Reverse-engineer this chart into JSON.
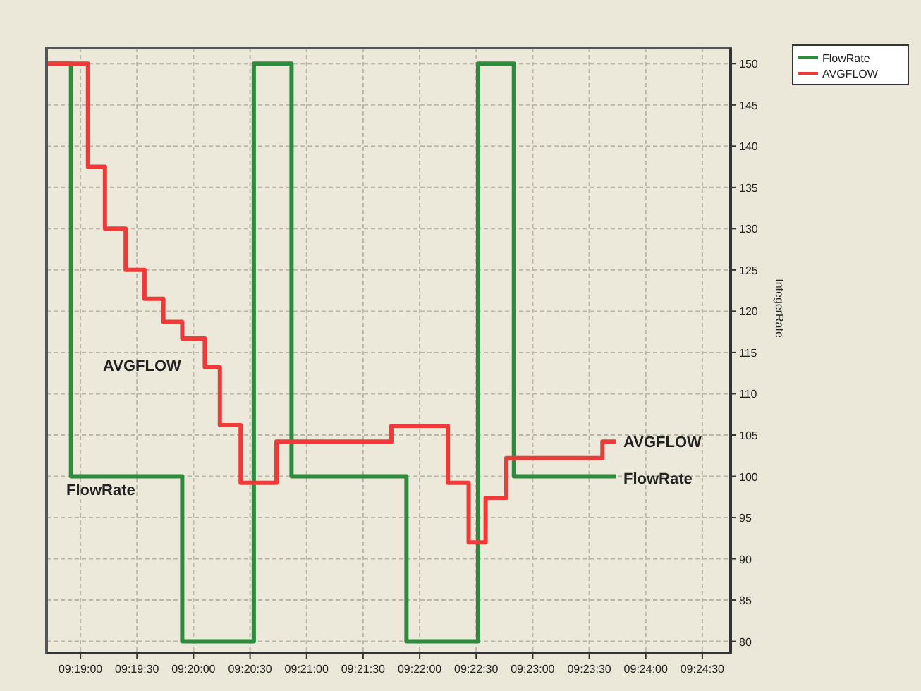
{
  "chart_data": {
    "type": "step",
    "ylabel": "IntegerRate",
    "xlim": [
      9.31167,
      9.4125
    ],
    "ylim": [
      78.6,
      151.9
    ],
    "xticks": [
      {
        "value": 9.31667,
        "label": "09:19:00"
      },
      {
        "value": 9.325,
        "label": "09:19:30"
      },
      {
        "value": 9.33333,
        "label": "09:20:00"
      },
      {
        "value": 9.34167,
        "label": "09:20:30"
      },
      {
        "value": 9.35,
        "label": "09:21:00"
      },
      {
        "value": 9.35833,
        "label": "09:21:30"
      },
      {
        "value": 9.36667,
        "label": "09:22:00"
      },
      {
        "value": 9.375,
        "label": "09:22:30"
      },
      {
        "value": 9.38333,
        "label": "09:23:00"
      },
      {
        "value": 9.39167,
        "label": "09:23:30"
      },
      {
        "value": 9.4,
        "label": "09:24:00"
      },
      {
        "value": 9.40833,
        "label": "09:24:30"
      }
    ],
    "yticks": [
      80,
      85,
      90,
      95,
      100,
      105,
      110,
      115,
      120,
      125,
      130,
      135,
      140,
      145,
      150
    ],
    "grid": true,
    "legend": "top right",
    "line_style": "solid",
    "marker": "none",
    "series": [
      {
        "name": "FlowRate",
        "color": "#2e8b3e",
        "x": [
          9.31167,
          9.31528,
          9.33167,
          9.34222,
          9.34778,
          9.36472,
          9.37528,
          9.38056,
          9.39556
        ],
        "values": [
          150,
          100,
          80,
          150,
          100,
          80,
          150,
          100,
          100
        ]
      },
      {
        "name": "AVGFLOW",
        "color": "#f03a3a",
        "x": [
          9.31167,
          9.31778,
          9.32028,
          9.32333,
          9.32611,
          9.32889,
          9.33167,
          9.335,
          9.33722,
          9.34028,
          9.34556,
          9.3625,
          9.37083,
          9.37389,
          9.37639,
          9.37944,
          9.39361,
          9.39556
        ],
        "values": [
          150,
          137.5,
          130,
          125,
          121.5,
          118.7,
          116.7,
          113.2,
          106.2,
          99.2,
          104.2,
          106.1,
          99.2,
          92,
          97.4,
          102.2,
          104.2,
          104.2
        ]
      }
    ],
    "annotations": [
      "AVGFLOW",
      "FlowRate",
      "AVGFLOW",
      "FlowRate"
    ]
  }
}
